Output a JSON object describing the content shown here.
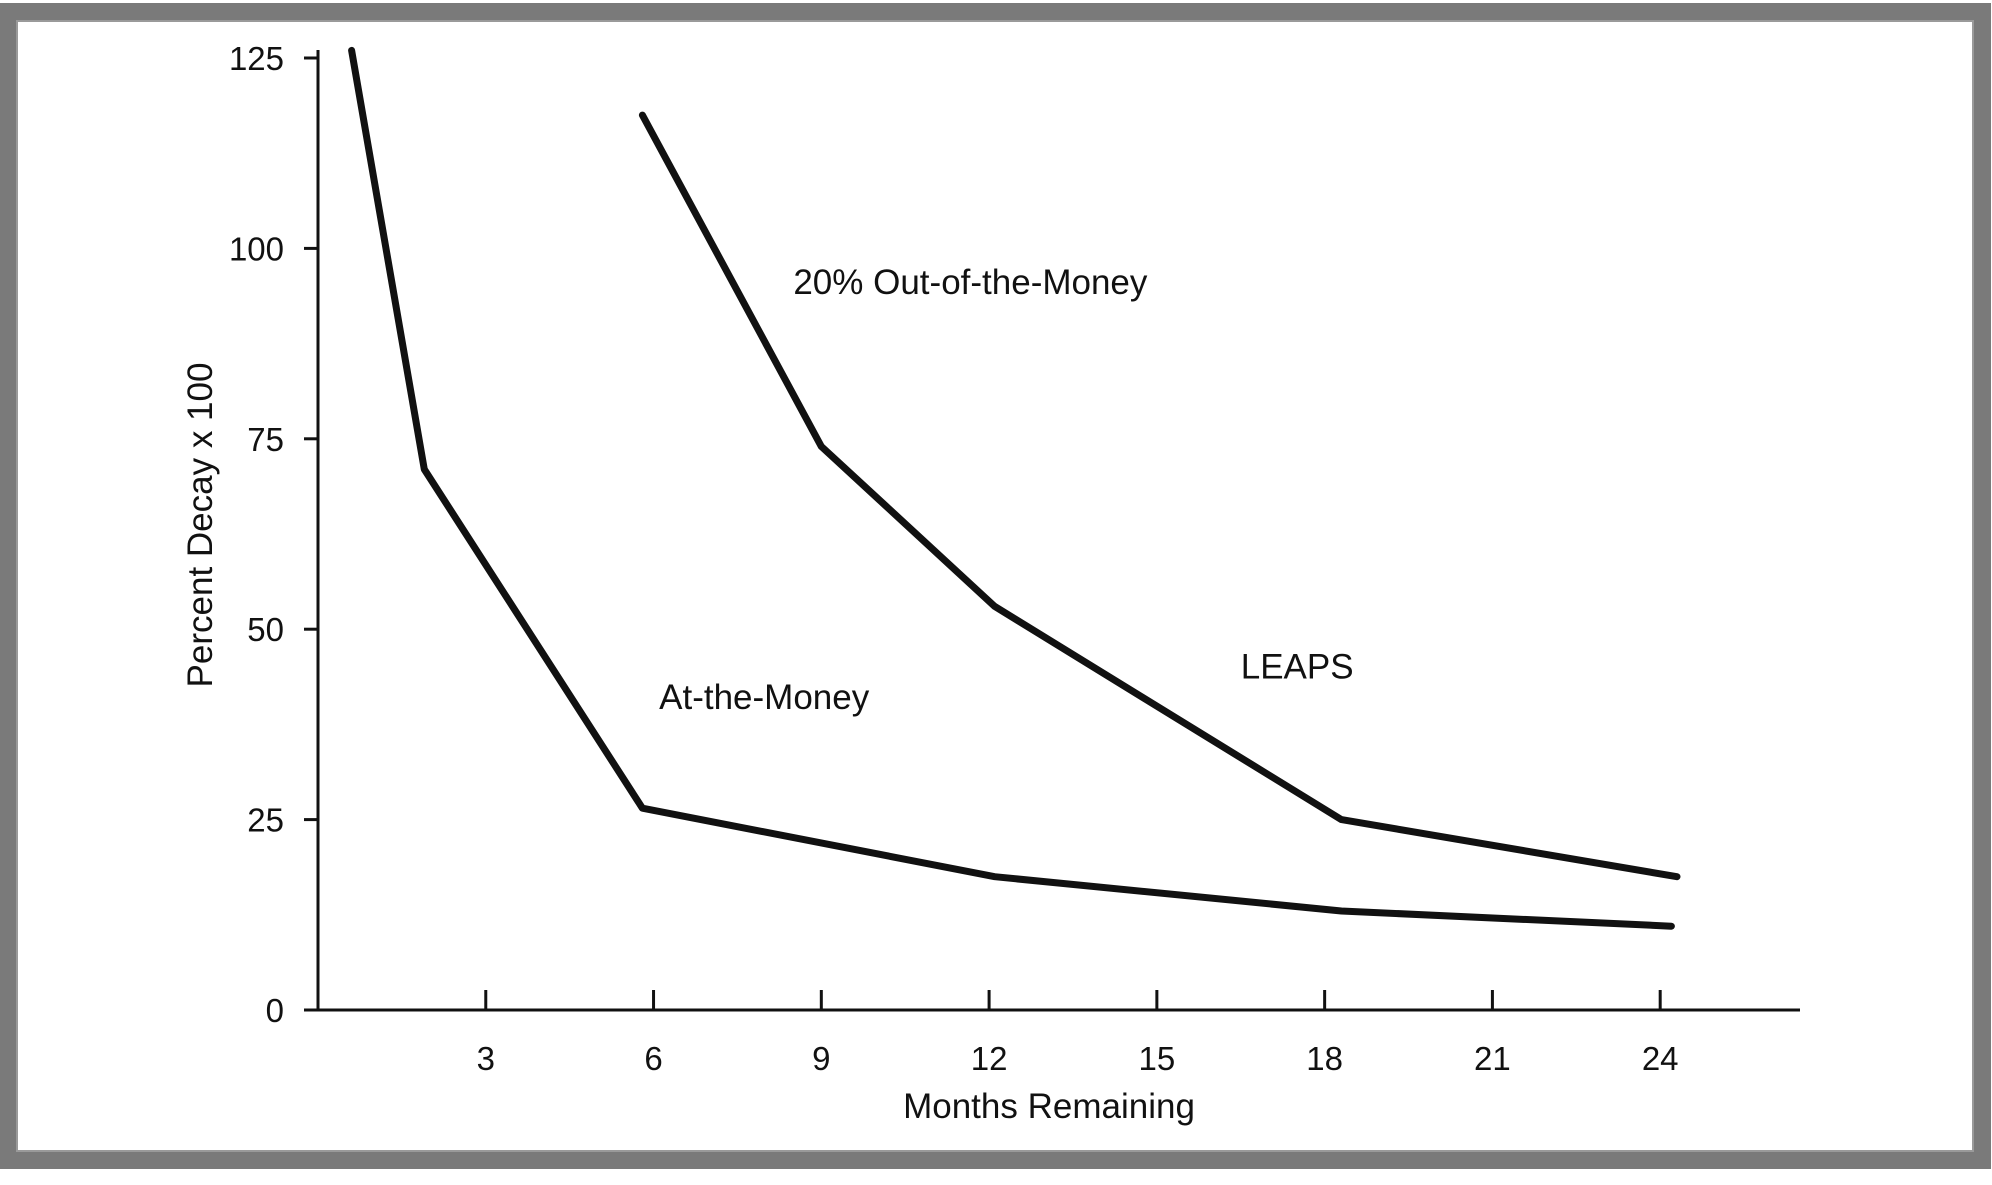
{
  "colors": {
    "background": "#ffffff",
    "frame": "#7a7a7a",
    "line": "#111111",
    "axis": "#111111"
  },
  "chart_data": {
    "type": "line",
    "title": "",
    "xlabel": "Months Remaining",
    "ylabel": "Percent Decay x 100",
    "xlim": [
      0,
      26.5
    ],
    "ylim": [
      0,
      125
    ],
    "x_ticks": [
      3,
      6,
      9,
      12,
      15,
      18,
      21,
      24
    ],
    "y_ticks": [
      0,
      25,
      50,
      75,
      100,
      125
    ],
    "grid": false,
    "legend": "none",
    "series": [
      {
        "key": "at-the-money",
        "x": [
          0.6,
          1.9,
          5.8,
          12.1,
          18.3,
          24.2
        ],
        "y": [
          126,
          71,
          26.5,
          17.5,
          13,
          11
        ]
      },
      {
        "key": "out-of-the-money",
        "x": [
          5.8,
          9.0,
          12.1,
          18.3,
          24.3
        ],
        "y": [
          117.5,
          74,
          53,
          25,
          17.5
        ]
      }
    ],
    "annotations": [
      {
        "key": "otm-label",
        "text": "20% Out-of-the-Money",
        "x": 8.5,
        "y": 94
      },
      {
        "key": "leaps-label",
        "text": "LEAPS",
        "x": 16.5,
        "y": 43.5
      },
      {
        "key": "atm-label",
        "text": "At-the-Money",
        "x": 6.1,
        "y": 39.5
      }
    ]
  }
}
